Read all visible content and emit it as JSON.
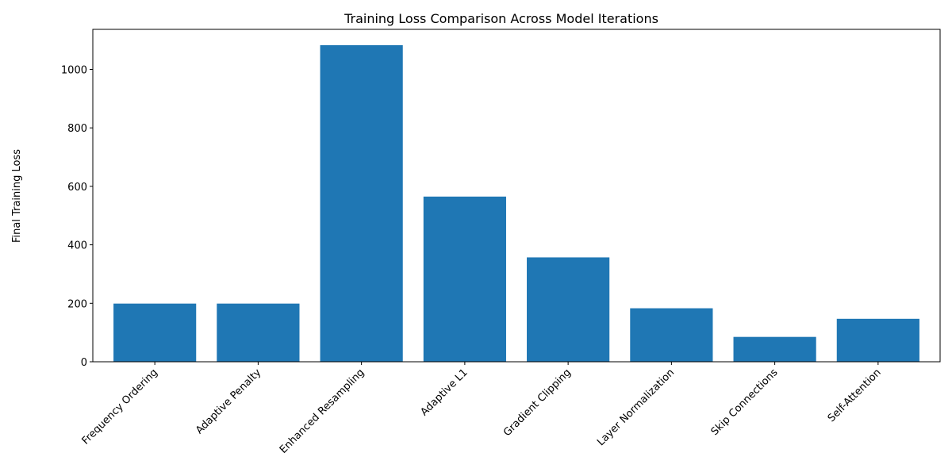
{
  "chart_data": {
    "type": "bar",
    "title": "Training Loss Comparison Across Model Iterations",
    "xlabel": "",
    "ylabel": "Final Training Loss",
    "categories": [
      "Frequency Ordering",
      "Adaptive Penalty",
      "Enhanced Resampling",
      "Adaptive L1",
      "Gradient Clipping",
      "Layer Normalization",
      "Skip Connections",
      "Self-Attention"
    ],
    "values": [
      199,
      199,
      1083,
      565,
      357,
      183,
      85,
      147
    ],
    "ylim": [
      0,
      1137
    ],
    "yticks": [
      0,
      200,
      400,
      600,
      800,
      1000
    ],
    "bar_color": "#1f77b4",
    "grid": false,
    "legend": "none"
  }
}
